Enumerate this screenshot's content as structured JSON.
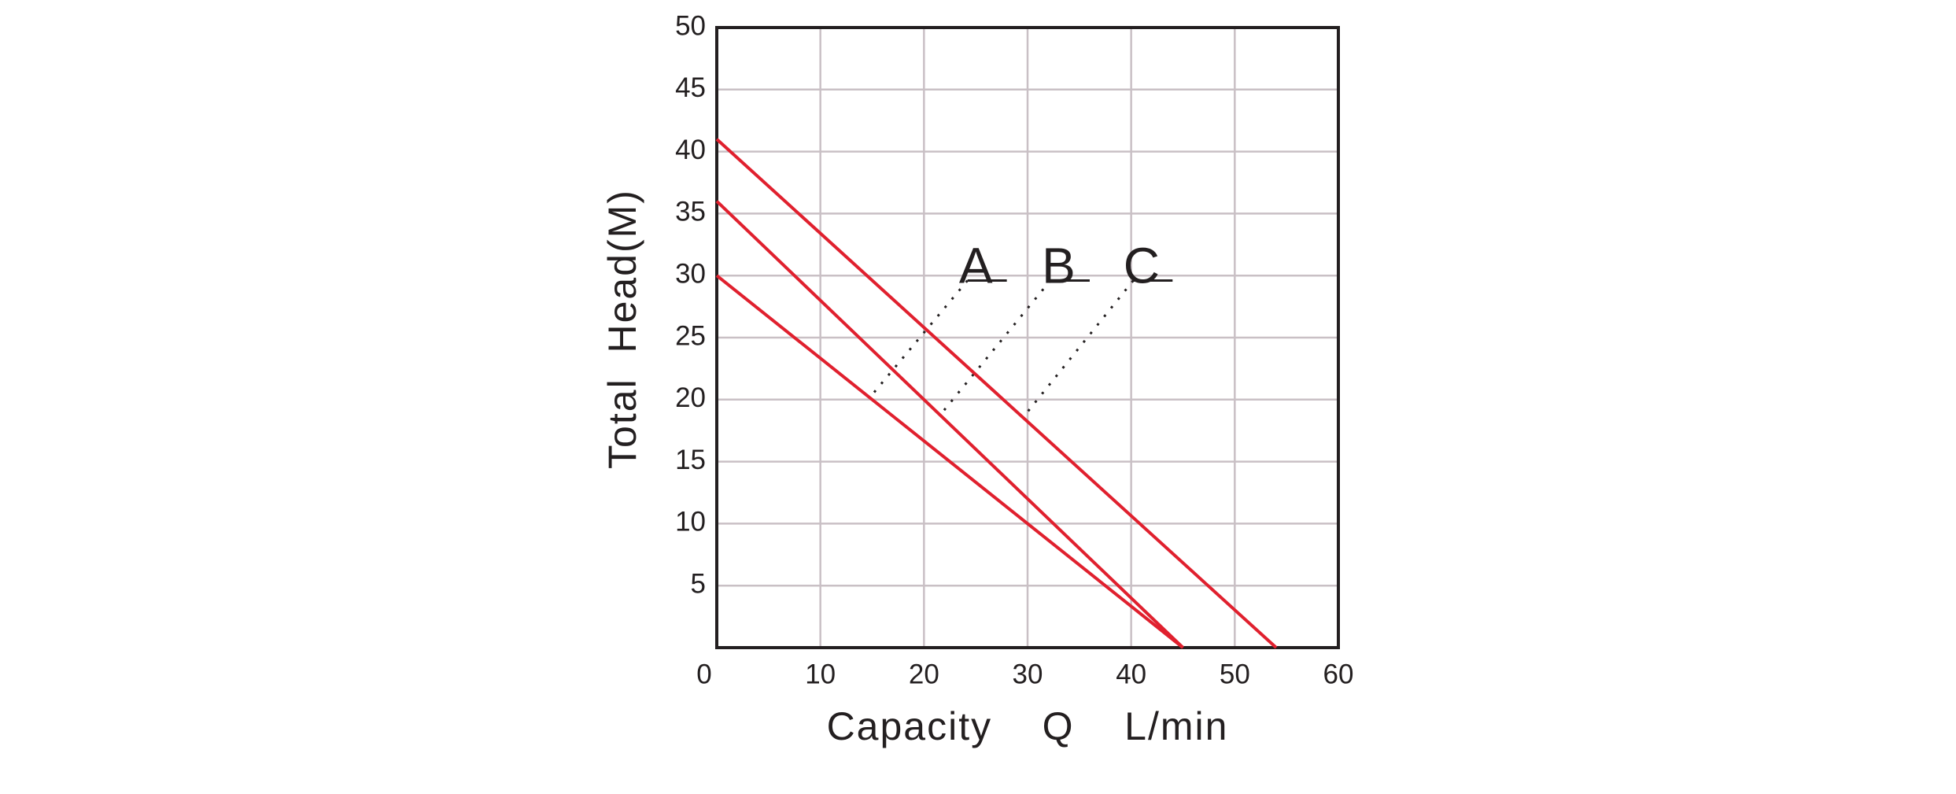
{
  "chart_data": {
    "type": "line",
    "x_label": "Capacity    Q    L/min",
    "y_label": "Total  Head(M)",
    "xlim": [
      0,
      60
    ],
    "xticks": [
      0,
      10,
      20,
      30,
      40,
      50,
      60
    ],
    "ylim": [
      0,
      50
    ],
    "yticks": [
      5,
      10,
      15,
      20,
      25,
      30,
      35,
      40,
      45,
      50
    ],
    "grid": true,
    "series": [
      {
        "name": "A",
        "color": "#e0202e",
        "x": [
          0,
          45
        ],
        "values": [
          30,
          0
        ]
      },
      {
        "name": "B",
        "color": "#e0202e",
        "x": [
          0,
          45
        ],
        "values": [
          36,
          0
        ]
      },
      {
        "name": "C",
        "color": "#e0202e",
        "x": [
          0,
          54
        ],
        "values": [
          41,
          0
        ]
      }
    ]
  }
}
